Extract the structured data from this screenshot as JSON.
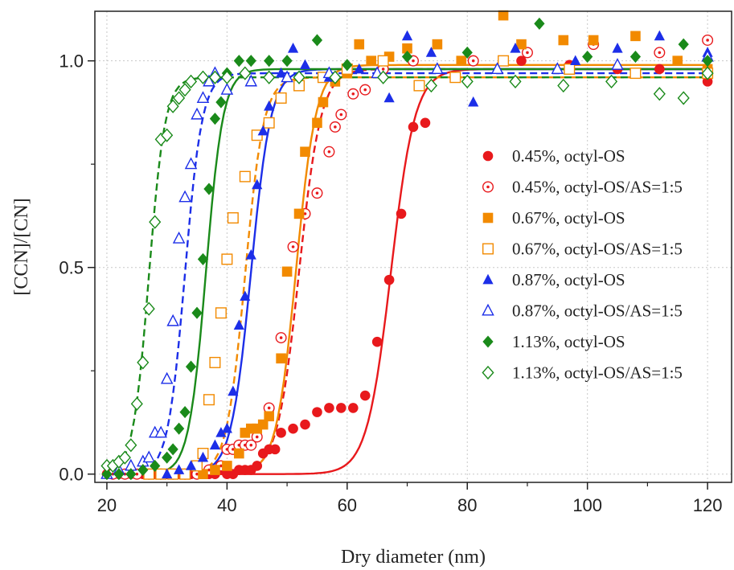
{
  "chart_data": {
    "type": "scatter",
    "xlabel": "Dry diameter (nm)",
    "ylabel": "[CCN]/[CN]",
    "xlim": [
      18,
      124
    ],
    "ylim": [
      -0.02,
      1.12
    ],
    "xticks": [
      20,
      40,
      60,
      80,
      100,
      120
    ],
    "xtick_labels": [
      "20",
      "40",
      "60",
      "80",
      "100",
      "120"
    ],
    "yticks": [
      0.0,
      0.5,
      1.0
    ],
    "ytick_labels": [
      "0.0",
      "0.5",
      "1.0"
    ],
    "grid": true,
    "legend_position": "right",
    "series": [
      {
        "name": "0.45%, octyl-OS",
        "color": "#e8191c",
        "marker": "circle",
        "filled": true,
        "fit": {
          "d50": 67.3,
          "k": 0.5,
          "min": 0.0,
          "max": 0.98,
          "dash": false
        },
        "points": [
          [
            20,
            0.0
          ],
          [
            21,
            0.0
          ],
          [
            22,
            0.0
          ],
          [
            23,
            0.0
          ],
          [
            24,
            0.0
          ],
          [
            25,
            0.0
          ],
          [
            26,
            0.0
          ],
          [
            27,
            0.0
          ],
          [
            28,
            0.0
          ],
          [
            29,
            0.0
          ],
          [
            30,
            0.0
          ],
          [
            31,
            0.0
          ],
          [
            32,
            0.0
          ],
          [
            33,
            0.0
          ],
          [
            34,
            0.0
          ],
          [
            35,
            0.0
          ],
          [
            36,
            0.0
          ],
          [
            37,
            0.0
          ],
          [
            38,
            0.0
          ],
          [
            39,
            0.01
          ],
          [
            40,
            0.0
          ],
          [
            41,
            0.0
          ],
          [
            42,
            0.01
          ],
          [
            43,
            0.01
          ],
          [
            44,
            0.01
          ],
          [
            45,
            0.02
          ],
          [
            46,
            0.05
          ],
          [
            47,
            0.06
          ],
          [
            48,
            0.06
          ],
          [
            49,
            0.1
          ],
          [
            51,
            0.11
          ],
          [
            53,
            0.12
          ],
          [
            55,
            0.15
          ],
          [
            57,
            0.16
          ],
          [
            59,
            0.16
          ],
          [
            61,
            0.16
          ],
          [
            63,
            0.19
          ],
          [
            65,
            0.32
          ],
          [
            67,
            0.47
          ],
          [
            69,
            0.63
          ],
          [
            71,
            0.84
          ],
          [
            73,
            0.85
          ],
          [
            81,
            1.0
          ],
          [
            89,
            1.0
          ],
          [
            97,
            0.99
          ],
          [
            105,
            0.98
          ],
          [
            112,
            0.98
          ],
          [
            120,
            0.95
          ]
        ]
      },
      {
        "name": "0.45%, octyl-OS/AS=1:5",
        "color": "#e8191c",
        "marker": "circle-dot",
        "filled": false,
        "fit": {
          "d50": 52.0,
          "k": 0.55,
          "min": 0.0,
          "max": 0.98,
          "dash": true
        },
        "points": [
          [
            21,
            0.0
          ],
          [
            23,
            0.0
          ],
          [
            25,
            0.0
          ],
          [
            27,
            0.0
          ],
          [
            29,
            0.0
          ],
          [
            31,
            0.0
          ],
          [
            33,
            0.0
          ],
          [
            35,
            0.0
          ],
          [
            37,
            0.01
          ],
          [
            39,
            0.02
          ],
          [
            40,
            0.06
          ],
          [
            41,
            0.06
          ],
          [
            42,
            0.07
          ],
          [
            43,
            0.07
          ],
          [
            44,
            0.07
          ],
          [
            45,
            0.09
          ],
          [
            47,
            0.16
          ],
          [
            49,
            0.33
          ],
          [
            51,
            0.55
          ],
          [
            53,
            0.63
          ],
          [
            55,
            0.68
          ],
          [
            57,
            0.78
          ],
          [
            58,
            0.84
          ],
          [
            59,
            0.87
          ],
          [
            61,
            0.92
          ],
          [
            63,
            0.93
          ],
          [
            66,
            0.98
          ],
          [
            71,
            1.0
          ],
          [
            81,
            1.0
          ],
          [
            90,
            1.02
          ],
          [
            101,
            1.04
          ],
          [
            112,
            1.02
          ],
          [
            120,
            1.05
          ]
        ]
      },
      {
        "name": "0.67%, octyl-OS",
        "color": "#f28a00",
        "marker": "square",
        "filled": true,
        "fit": {
          "d50": 51.5,
          "k": 0.6,
          "min": 0.0,
          "max": 0.99,
          "dash": false
        },
        "points": [
          [
            36,
            0.0
          ],
          [
            38,
            0.01
          ],
          [
            40,
            0.02
          ],
          [
            42,
            0.05
          ],
          [
            43,
            0.1
          ],
          [
            44,
            0.11
          ],
          [
            45,
            0.11
          ],
          [
            46,
            0.12
          ],
          [
            47,
            0.14
          ],
          [
            49,
            0.28
          ],
          [
            50,
            0.49
          ],
          [
            52,
            0.63
          ],
          [
            53,
            0.78
          ],
          [
            55,
            0.85
          ],
          [
            56,
            0.9
          ],
          [
            58,
            0.95
          ],
          [
            60,
            0.97
          ],
          [
            62,
            1.04
          ],
          [
            64,
            1.0
          ],
          [
            67,
            1.01
          ],
          [
            70,
            1.03
          ],
          [
            75,
            1.04
          ],
          [
            79,
            1.0
          ],
          [
            86,
            1.11
          ],
          [
            89,
            1.04
          ],
          [
            96,
            1.05
          ],
          [
            101,
            1.05
          ],
          [
            108,
            1.06
          ],
          [
            115,
            1.0
          ],
          [
            120,
            0.98
          ]
        ]
      },
      {
        "name": "0.67%, octyl-OS/AS=1:5",
        "color": "#f28a00",
        "marker": "square",
        "filled": false,
        "fit": {
          "d50": 43.0,
          "k": 0.65,
          "min": 0.0,
          "max": 0.96,
          "dash": true
        },
        "points": [
          [
            27,
            0.0
          ],
          [
            29,
            0.0
          ],
          [
            31,
            0.0
          ],
          [
            33,
            0.0
          ],
          [
            35,
            0.02
          ],
          [
            36,
            0.05
          ],
          [
            37,
            0.18
          ],
          [
            38,
            0.27
          ],
          [
            39,
            0.39
          ],
          [
            40,
            0.52
          ],
          [
            41,
            0.62
          ],
          [
            43,
            0.72
          ],
          [
            45,
            0.82
          ],
          [
            47,
            0.85
          ],
          [
            49,
            0.91
          ],
          [
            52,
            0.94
          ],
          [
            56,
            0.96
          ],
          [
            60,
            0.98
          ],
          [
            66,
            1.0
          ],
          [
            72,
            0.94
          ],
          [
            78,
            0.96
          ],
          [
            86,
            1.0
          ],
          [
            97,
            0.98
          ],
          [
            108,
            0.97
          ],
          [
            120,
            0.97
          ]
        ]
      },
      {
        "name": "0.87%, octyl-OS",
        "color": "#1c2ee8",
        "marker": "triangle",
        "filled": true,
        "fit": {
          "d50": 44.0,
          "k": 0.6,
          "min": 0.0,
          "max": 0.98,
          "dash": false
        },
        "points": [
          [
            30,
            0.0
          ],
          [
            32,
            0.01
          ],
          [
            34,
            0.02
          ],
          [
            36,
            0.04
          ],
          [
            38,
            0.07
          ],
          [
            39,
            0.1
          ],
          [
            40,
            0.11
          ],
          [
            41,
            0.2
          ],
          [
            42,
            0.36
          ],
          [
            43,
            0.43
          ],
          [
            44,
            0.53
          ],
          [
            45,
            0.7
          ],
          [
            46,
            0.83
          ],
          [
            47,
            0.89
          ],
          [
            49,
            0.97
          ],
          [
            51,
            1.03
          ],
          [
            53,
            0.99
          ],
          [
            57,
            0.96
          ],
          [
            62,
            0.98
          ],
          [
            67,
            0.91
          ],
          [
            70,
            1.06
          ],
          [
            74,
            1.02
          ],
          [
            81,
            0.9
          ],
          [
            88,
            1.03
          ],
          [
            98,
            1.0
          ],
          [
            105,
            1.03
          ],
          [
            112,
            1.06
          ],
          [
            120,
            1.02
          ]
        ]
      },
      {
        "name": "0.87%, octyl-OS/AS=1:5",
        "color": "#1c2ee8",
        "marker": "triangle",
        "filled": false,
        "fit": {
          "d50": 33.0,
          "k": 0.7,
          "min": 0.0,
          "max": 0.97,
          "dash": true
        },
        "points": [
          [
            20,
            0.0
          ],
          [
            22,
            0.01
          ],
          [
            24,
            0.02
          ],
          [
            26,
            0.03
          ],
          [
            27,
            0.04
          ],
          [
            28,
            0.1
          ],
          [
            29,
            0.1
          ],
          [
            30,
            0.23
          ],
          [
            31,
            0.37
          ],
          [
            32,
            0.57
          ],
          [
            33,
            0.67
          ],
          [
            34,
            0.75
          ],
          [
            35,
            0.87
          ],
          [
            36,
            0.91
          ],
          [
            37,
            0.95
          ],
          [
            38,
            0.97
          ],
          [
            40,
            0.93
          ],
          [
            44,
            0.95
          ],
          [
            50,
            0.96
          ],
          [
            57,
            0.97
          ],
          [
            65,
            0.97
          ],
          [
            75,
            0.98
          ],
          [
            85,
            0.98
          ],
          [
            95,
            0.98
          ],
          [
            105,
            0.99
          ],
          [
            120,
            1.01
          ]
        ]
      },
      {
        "name": "1.13%, octyl-OS",
        "color": "#1a8a1a",
        "marker": "diamond",
        "filled": true,
        "fit": {
          "d50": 36.5,
          "k": 0.7,
          "min": 0.0,
          "max": 0.98,
          "dash": false
        },
        "points": [
          [
            20,
            0.0
          ],
          [
            22,
            0.0
          ],
          [
            24,
            0.0
          ],
          [
            26,
            0.01
          ],
          [
            28,
            0.02
          ],
          [
            30,
            0.04
          ],
          [
            31,
            0.06
          ],
          [
            32,
            0.11
          ],
          [
            33,
            0.15
          ],
          [
            34,
            0.26
          ],
          [
            35,
            0.39
          ],
          [
            36,
            0.52
          ],
          [
            37,
            0.69
          ],
          [
            38,
            0.86
          ],
          [
            39,
            0.9
          ],
          [
            40,
            0.97
          ],
          [
            42,
            1.0
          ],
          [
            44,
            1.0
          ],
          [
            47,
            1.0
          ],
          [
            50,
            1.0
          ],
          [
            55,
            1.05
          ],
          [
            60,
            0.99
          ],
          [
            70,
            1.01
          ],
          [
            80,
            1.02
          ],
          [
            92,
            1.09
          ],
          [
            100,
            1.01
          ],
          [
            108,
            1.01
          ],
          [
            116,
            1.04
          ],
          [
            120,
            1.0
          ]
        ]
      },
      {
        "name": "1.13%, octyl-OS/AS=1:5",
        "color": "#1a8a1a",
        "marker": "diamond",
        "filled": false,
        "fit": {
          "d50": 27.0,
          "k": 0.75,
          "min": 0.0,
          "max": 0.96,
          "dash": true
        },
        "points": [
          [
            20,
            0.02
          ],
          [
            21,
            0.02
          ],
          [
            22,
            0.03
          ],
          [
            23,
            0.04
          ],
          [
            24,
            0.07
          ],
          [
            25,
            0.17
          ],
          [
            26,
            0.27
          ],
          [
            27,
            0.4
          ],
          [
            28,
            0.61
          ],
          [
            29,
            0.81
          ],
          [
            30,
            0.82
          ],
          [
            31,
            0.89
          ],
          [
            32,
            0.91
          ],
          [
            33,
            0.93
          ],
          [
            34,
            0.95
          ],
          [
            36,
            0.96
          ],
          [
            38,
            0.96
          ],
          [
            40,
            0.96
          ],
          [
            43,
            0.97
          ],
          [
            47,
            0.96
          ],
          [
            52,
            0.96
          ],
          [
            58,
            0.96
          ],
          [
            66,
            0.96
          ],
          [
            74,
            0.94
          ],
          [
            80,
            0.95
          ],
          [
            88,
            0.95
          ],
          [
            96,
            0.94
          ],
          [
            104,
            0.95
          ],
          [
            112,
            0.92
          ],
          [
            116,
            0.91
          ],
          [
            120,
            0.97
          ]
        ]
      }
    ]
  }
}
